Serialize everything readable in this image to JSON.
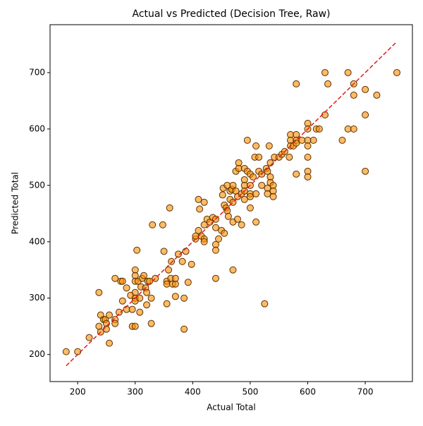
{
  "chart_data": {
    "type": "scatter",
    "title": "Actual vs Predicted (Decision Tree, Raw)",
    "x_label": "Actual Total",
    "y_label": "Predicted Total",
    "x": [
      180,
      200,
      220,
      237,
      237,
      240,
      240,
      245,
      248,
      250,
      250,
      255,
      255,
      265,
      265,
      265,
      272,
      275,
      278,
      278,
      285,
      285,
      292,
      295,
      295,
      300,
      300,
      300,
      300,
      300,
      300,
      300,
      303,
      305,
      308,
      308,
      310,
      312,
      315,
      318,
      320,
      320,
      322,
      325,
      328,
      328,
      330,
      335,
      348,
      350,
      355,
      355,
      355,
      358,
      360,
      362,
      363,
      365,
      370,
      370,
      370,
      375,
      382,
      385,
      385,
      388,
      392,
      398,
      405,
      405,
      410,
      410,
      412,
      415,
      420,
      420,
      420,
      420,
      425,
      430,
      435,
      440,
      440,
      440,
      440,
      440,
      445,
      450,
      452,
      453,
      455,
      455,
      458,
      460,
      460,
      462,
      465,
      465,
      468,
      470,
      470,
      470,
      470,
      475,
      475,
      478,
      478,
      480,
      480,
      485,
      485,
      490,
      490,
      490,
      490,
      490,
      495,
      495,
      500,
      500,
      500,
      500,
      500,
      505,
      508,
      510,
      510,
      510,
      515,
      515,
      520,
      520,
      525,
      528,
      530,
      530,
      530,
      533,
      535,
      535,
      535,
      540,
      540,
      540,
      542,
      550,
      555,
      560,
      568,
      570,
      570,
      570,
      575,
      580,
      580,
      580,
      580,
      580,
      590,
      600,
      600,
      600,
      600,
      600,
      600,
      600,
      610,
      615,
      620,
      630,
      630,
      635,
      660,
      670,
      670,
      680,
      680,
      680,
      700,
      700,
      700,
      720,
      755
    ],
    "values": [
      205,
      205,
      230,
      310,
      250,
      270,
      240,
      262,
      262,
      255,
      245,
      220,
      270,
      335,
      262,
      255,
      275,
      330,
      330,
      295,
      318,
      280,
      305,
      280,
      250,
      350,
      340,
      330,
      310,
      300,
      295,
      250,
      385,
      330,
      300,
      275,
      320,
      335,
      340,
      318,
      310,
      288,
      330,
      330,
      300,
      255,
      430,
      335,
      430,
      383,
      330,
      325,
      290,
      350,
      460,
      335,
      365,
      325,
      303,
      325,
      335,
      378,
      365,
      300,
      245,
      383,
      328,
      360,
      405,
      410,
      420,
      475,
      458,
      410,
      470,
      430,
      405,
      400,
      440,
      435,
      443,
      440,
      425,
      395,
      385,
      335,
      405,
      420,
      483,
      495,
      465,
      415,
      460,
      500,
      455,
      445,
      475,
      490,
      493,
      500,
      470,
      435,
      350,
      525,
      490,
      480,
      440,
      540,
      530,
      485,
      430,
      530,
      510,
      500,
      490,
      475,
      580,
      525,
      520,
      500,
      485,
      480,
      460,
      515,
      550,
      570,
      485,
      435,
      550,
      525,
      520,
      500,
      290,
      530,
      525,
      495,
      485,
      570,
      540,
      515,
      505,
      500,
      490,
      480,
      550,
      550,
      555,
      560,
      550,
      590,
      580,
      570,
      570,
      680,
      590,
      580,
      575,
      520,
      580,
      610,
      600,
      580,
      570,
      550,
      525,
      515,
      580,
      600,
      600,
      700,
      625,
      680,
      580,
      700,
      600,
      680,
      660,
      600,
      670,
      625,
      525,
      660,
      700
    ],
    "color": "#ff8c00",
    "edge_color": "#5a3200",
    "reference_line": {
      "x": [
        180,
        755
      ],
      "y": [
        180,
        755
      ],
      "color": "#e41a1c"
    },
    "xlim": [
      152,
      782
    ],
    "ylim": [
      152,
      785
    ],
    "xticks": [
      200,
      300,
      400,
      500,
      600,
      700
    ],
    "yticks": [
      200,
      300,
      400,
      500,
      600,
      700
    ]
  }
}
